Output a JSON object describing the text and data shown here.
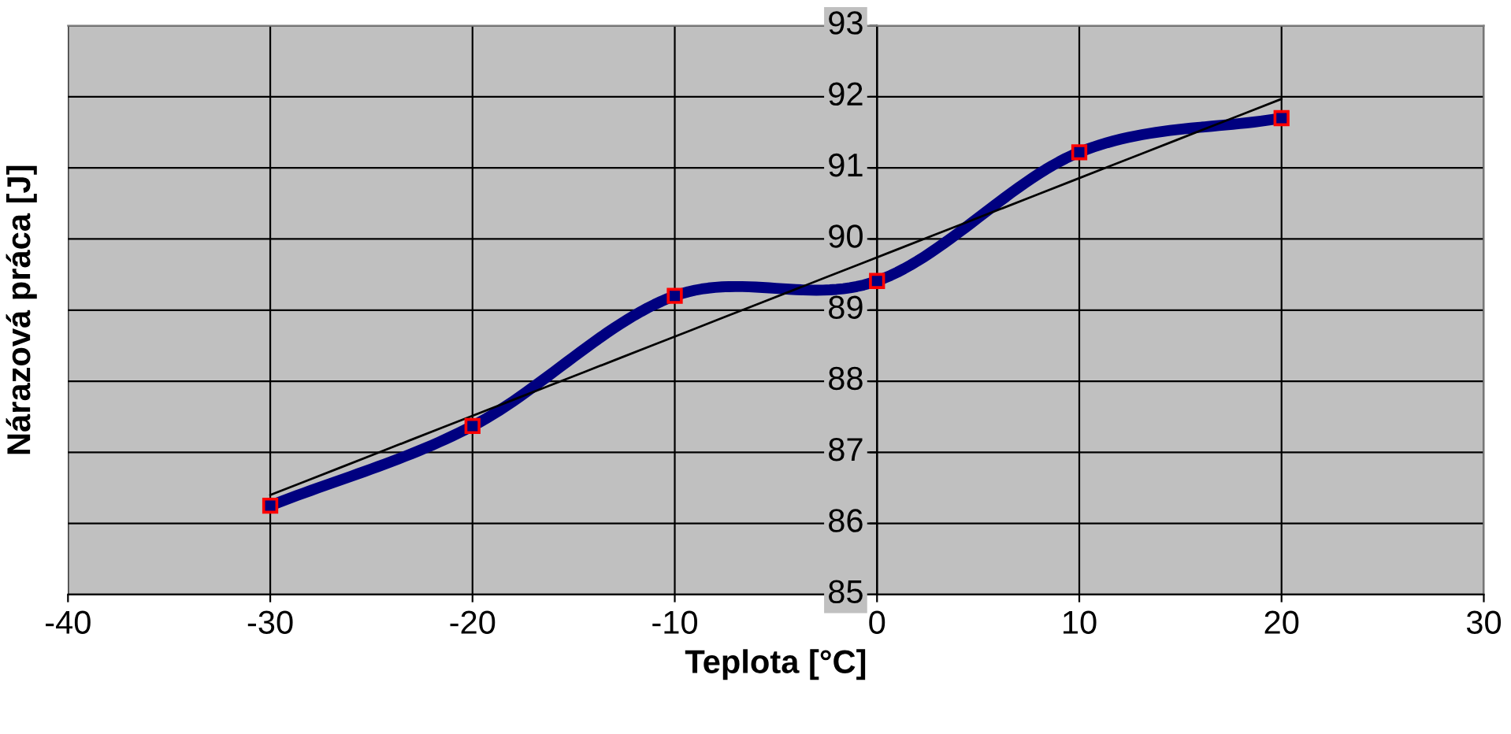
{
  "chart_data": {
    "type": "line",
    "xlabel": "Teplota [°C]",
    "ylabel": "Nárazová práca [J]",
    "x": [
      -30,
      -20,
      -10,
      0,
      10,
      20
    ],
    "series": [
      {
        "color": "#000080",
        "marker": "square",
        "values": [
          86.25,
          87.37,
          89.2,
          89.41,
          91.22,
          91.7
        ]
      },
      {
        "x": [
          -30,
          20
        ],
        "color": "#000000",
        "marker": "none",
        "values": [
          86.4,
          91.97
        ]
      }
    ],
    "xlim": [
      -40,
      30
    ],
    "xticks": [
      -40,
      -30,
      -20,
      -10,
      0,
      10,
      20,
      30
    ],
    "ylim": [
      85,
      93
    ],
    "yticks": [
      85,
      86,
      87,
      88,
      89,
      90,
      91,
      92,
      93
    ],
    "grid": true
  }
}
